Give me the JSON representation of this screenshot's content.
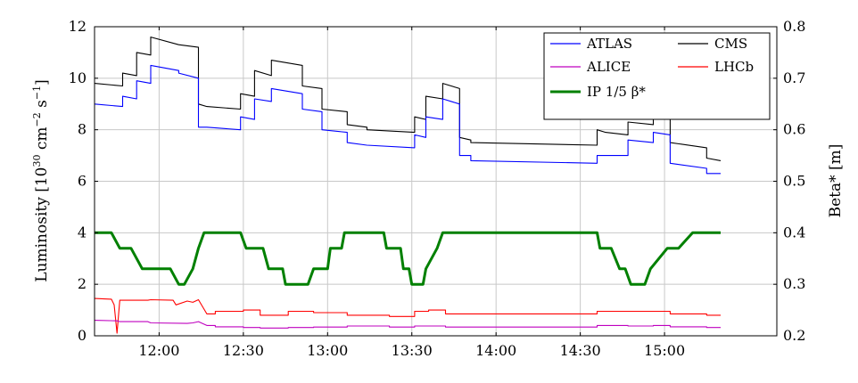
{
  "chart_data": {
    "type": "line",
    "x_axis": {
      "ticks": [
        "12:00",
        "12:30",
        "13:00",
        "13:30",
        "14:00",
        "14:30",
        "15:00"
      ],
      "range": [
        "11:37",
        "15:40"
      ]
    },
    "y_left": {
      "label": "Luminosity [10^30 cm^-2 s^-1]",
      "ylim": [
        0,
        12
      ],
      "ticks": [
        "0",
        "2",
        "4",
        "6",
        "8",
        "10",
        "12"
      ]
    },
    "y_right": {
      "label": "Beta* [m]",
      "ylim": [
        0.2,
        0.8
      ],
      "ticks": [
        "0.2",
        "0.3",
        "0.4",
        "0.5",
        "0.6",
        "0.7",
        "0.8"
      ]
    },
    "grid": true,
    "legend": {
      "placement": "top-right",
      "entries": [
        {
          "name": "ATLAS",
          "color": "#0000ff"
        },
        {
          "name": "CMS",
          "color": "#000000"
        },
        {
          "name": "ALICE",
          "color": "#bf00bf"
        },
        {
          "name": "LHCb",
          "color": "#ff0000"
        },
        {
          "name": "IP 1/5 β*",
          "color": "#008000"
        }
      ]
    },
    "series": [
      {
        "name": "CMS",
        "axis": "left",
        "color": "#000000",
        "x": [
          "11:37",
          "11:47",
          "11:47",
          "11:52",
          "11:52",
          "11:57",
          "11:57",
          "12:07",
          "12:07",
          "12:14",
          "12:14",
          "12:17",
          "12:17",
          "12:29",
          "12:29",
          "12:34",
          "12:34",
          "12:40",
          "12:40",
          "12:51",
          "12:51",
          "12:58",
          "12:58",
          "13:07",
          "13:07",
          "13:14",
          "13:14",
          "13:31",
          "13:31",
          "13:35",
          "13:35",
          "13:41",
          "13:41",
          "13:47",
          "13:47",
          "13:51",
          "13:51",
          "14:36",
          "14:36",
          "14:39",
          "14:39",
          "14:47",
          "14:47",
          "14:56",
          "14:56",
          "15:02",
          "15:02",
          "15:15",
          "15:15",
          "15:20"
        ],
        "y": [
          9.8,
          9.7,
          10.2,
          10.1,
          11.0,
          10.9,
          11.6,
          11.3,
          11.3,
          11.2,
          9.0,
          8.9,
          8.9,
          8.8,
          9.4,
          9.3,
          10.3,
          10.1,
          10.7,
          10.5,
          9.7,
          9.6,
          8.8,
          8.7,
          8.2,
          8.1,
          8.0,
          7.9,
          8.5,
          8.4,
          9.3,
          9.2,
          9.8,
          9.6,
          7.7,
          7.6,
          7.5,
          7.4,
          8.0,
          7.9,
          7.9,
          7.8,
          8.3,
          8.2,
          8.9,
          8.8,
          7.5,
          7.3,
          6.9,
          6.8
        ]
      },
      {
        "name": "ATLAS",
        "axis": "left",
        "color": "#0000ff",
        "x": [
          "11:37",
          "11:47",
          "11:47",
          "11:52",
          "11:52",
          "11:57",
          "11:57",
          "12:07",
          "12:07",
          "12:14",
          "12:14",
          "12:17",
          "12:17",
          "12:29",
          "12:29",
          "12:34",
          "12:34",
          "12:40",
          "12:40",
          "12:51",
          "12:51",
          "12:58",
          "12:58",
          "13:07",
          "13:07",
          "13:14",
          "13:14",
          "13:31",
          "13:31",
          "13:35",
          "13:35",
          "13:41",
          "13:41",
          "13:47",
          "13:47",
          "13:51",
          "13:51",
          "14:36",
          "14:36",
          "14:39",
          "14:39",
          "14:47",
          "14:47",
          "14:56",
          "14:56",
          "15:02",
          "15:02",
          "15:15",
          "15:15",
          "15:20"
        ],
        "y": [
          9.0,
          8.9,
          9.3,
          9.2,
          9.9,
          9.8,
          10.5,
          10.3,
          10.2,
          10.0,
          8.1,
          8.1,
          8.1,
          8.0,
          8.5,
          8.4,
          9.2,
          9.1,
          9.6,
          9.4,
          8.8,
          8.7,
          8.0,
          7.9,
          7.5,
          7.4,
          7.4,
          7.3,
          7.8,
          7.7,
          8.5,
          8.4,
          9.2,
          9.0,
          7.0,
          7.0,
          6.8,
          6.7,
          7.0,
          7.0,
          7.0,
          7.0,
          7.6,
          7.5,
          7.9,
          7.8,
          6.7,
          6.5,
          6.3,
          6.3
        ]
      },
      {
        "name": "LHCb",
        "axis": "left",
        "color": "#ff0000",
        "x": [
          "11:37",
          "11:43",
          "11:44",
          "11:45",
          "11:46",
          "11:56",
          "11:57",
          "12:05",
          "12:06",
          "12:10",
          "12:12",
          "12:14",
          "12:17",
          "12:20",
          "12:20",
          "12:30",
          "12:30",
          "12:36",
          "12:36",
          "12:46",
          "12:46",
          "12:55",
          "12:55",
          "13:07",
          "13:07",
          "13:22",
          "13:22",
          "13:31",
          "13:31",
          "13:36",
          "13:36",
          "13:42",
          "13:42",
          "13:48",
          "13:48",
          "14:36",
          "14:36",
          "14:47",
          "14:47",
          "14:56",
          "14:56",
          "15:02",
          "15:02",
          "15:15",
          "15:15",
          "15:20"
        ],
        "y": [
          1.45,
          1.42,
          1.2,
          0.1,
          1.38,
          1.38,
          1.4,
          1.38,
          1.2,
          1.35,
          1.3,
          1.4,
          0.85,
          0.85,
          0.95,
          0.95,
          1.0,
          1.0,
          0.8,
          0.8,
          0.95,
          0.95,
          0.9,
          0.9,
          0.8,
          0.8,
          0.75,
          0.75,
          0.95,
          0.95,
          1.0,
          1.0,
          0.85,
          0.85,
          0.85,
          0.85,
          0.95,
          0.95,
          0.95,
          0.95,
          0.95,
          0.95,
          0.85,
          0.85,
          0.8,
          0.8
        ]
      },
      {
        "name": "ALICE",
        "axis": "left",
        "color": "#bf00bf",
        "x": [
          "11:37",
          "11:45",
          "11:46",
          "11:56",
          "11:57",
          "12:10",
          "12:12",
          "12:14",
          "12:17",
          "12:20",
          "12:20",
          "12:30",
          "12:30",
          "12:36",
          "12:36",
          "12:46",
          "12:46",
          "12:55",
          "12:55",
          "13:07",
          "13:07",
          "13:22",
          "13:22",
          "13:31",
          "13:31",
          "13:42",
          "13:42",
          "14:36",
          "14:36",
          "14:47",
          "14:47",
          "14:56",
          "14:56",
          "15:02",
          "15:02",
          "15:15",
          "15:15",
          "15:20"
        ],
        "y": [
          0.6,
          0.58,
          0.55,
          0.55,
          0.5,
          0.48,
          0.5,
          0.55,
          0.4,
          0.4,
          0.35,
          0.35,
          0.32,
          0.32,
          0.3,
          0.3,
          0.32,
          0.32,
          0.34,
          0.34,
          0.38,
          0.38,
          0.34,
          0.34,
          0.38,
          0.38,
          0.34,
          0.34,
          0.4,
          0.4,
          0.38,
          0.38,
          0.4,
          0.4,
          0.35,
          0.35,
          0.32,
          0.32
        ]
      },
      {
        "name": "IP 1/5 β*",
        "axis": "right",
        "color": "#008000",
        "x": [
          "11:37",
          "11:43",
          "11:46",
          "11:50",
          "11:54",
          "12:04",
          "12:07",
          "12:09",
          "12:12",
          "12:14",
          "12:16",
          "12:29",
          "12:31",
          "12:37",
          "12:39",
          "12:44",
          "12:45",
          "12:53",
          "12:55",
          "13:00",
          "13:01",
          "13:05",
          "13:06",
          "13:20",
          "13:21",
          "13:26",
          "13:27",
          "13:29",
          "13:30",
          "13:34",
          "13:35",
          "13:39",
          "13:41",
          "13:47",
          "13:48",
          "14:36",
          "14:37",
          "14:41",
          "14:44",
          "14:46",
          "14:48",
          "14:53",
          "14:55",
          "15:01",
          "15:05",
          "15:10",
          "15:13",
          "15:20"
        ],
        "y": [
          0.4,
          0.4,
          0.37,
          0.37,
          0.33,
          0.33,
          0.3,
          0.3,
          0.33,
          0.37,
          0.4,
          0.4,
          0.37,
          0.37,
          0.33,
          0.33,
          0.3,
          0.3,
          0.33,
          0.33,
          0.37,
          0.37,
          0.4,
          0.4,
          0.37,
          0.37,
          0.33,
          0.33,
          0.3,
          0.3,
          0.33,
          0.37,
          0.4,
          0.4,
          0.4,
          0.4,
          0.37,
          0.37,
          0.33,
          0.33,
          0.3,
          0.3,
          0.33,
          0.37,
          0.37,
          0.4,
          0.4,
          0.4
        ]
      }
    ]
  }
}
